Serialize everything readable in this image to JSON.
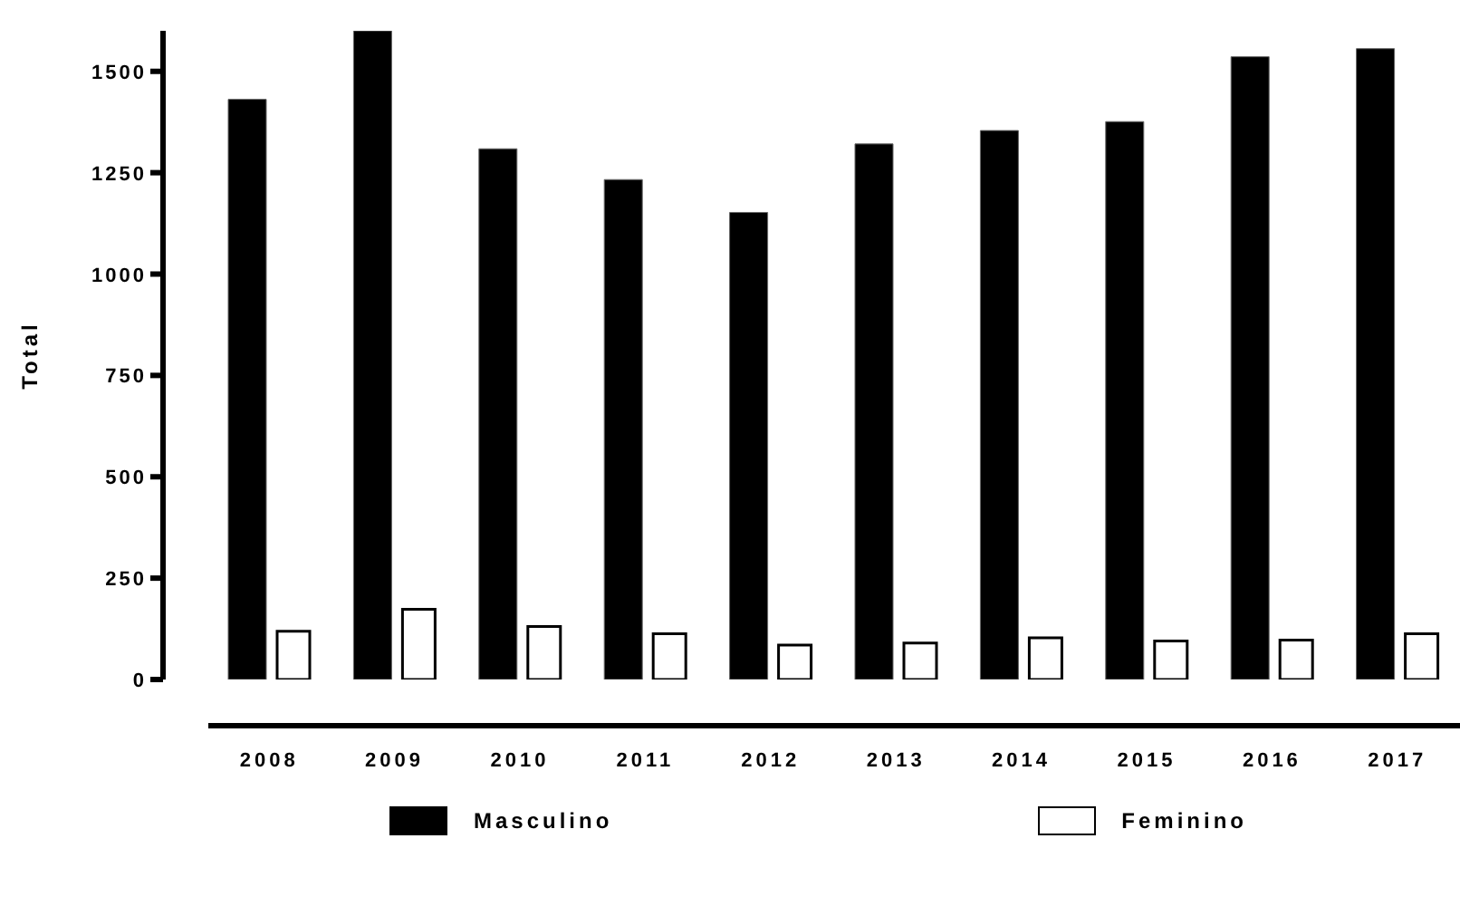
{
  "chart_data": {
    "type": "bar",
    "ylabel": "Total",
    "categories": [
      "2008",
      "2009",
      "2010",
      "2011",
      "2012",
      "2013",
      "2014",
      "2015",
      "2016",
      "2017"
    ],
    "series": [
      {
        "name": "Masculino",
        "color": "#000000",
        "values": [
          1431,
          1600,
          1309,
          1233,
          1152,
          1321,
          1354,
          1376,
          1536,
          1556
        ]
      },
      {
        "name": "Feminino",
        "color": "#ffffff",
        "values": [
          119,
          173,
          131,
          113,
          85,
          90,
          103,
          95,
          97,
          113
        ]
      }
    ],
    "ylim": [
      0,
      1600
    ],
    "yticks": [
      0,
      250,
      500,
      750,
      1000,
      1250,
      1500
    ],
    "grid": false,
    "legend": "bottom"
  }
}
